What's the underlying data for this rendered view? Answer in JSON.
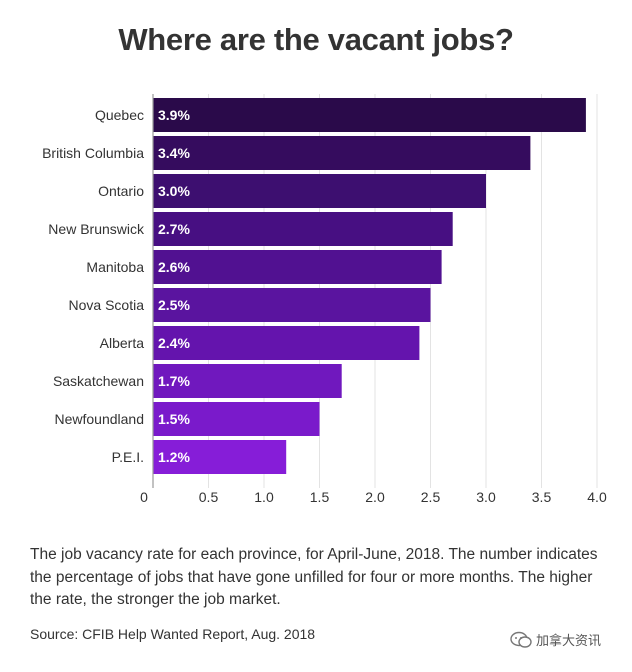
{
  "chart_data": {
    "type": "bar",
    "orientation": "horizontal",
    "title": "Where are the vacant jobs?",
    "categories": [
      "Quebec",
      "British Columbia",
      "Ontario",
      "New Brunswick",
      "Manitoba",
      "Nova Scotia",
      "Alberta",
      "Saskatchewan",
      "Newfoundland",
      "P.E.I."
    ],
    "values": [
      3.9,
      3.4,
      3.0,
      2.7,
      2.6,
      2.5,
      2.4,
      1.7,
      1.5,
      1.2
    ],
    "value_labels": [
      "3.9%",
      "3.4%",
      "3.0%",
      "2.7%",
      "2.6%",
      "2.5%",
      "2.4%",
      "1.7%",
      "1.5%",
      "1.2%"
    ],
    "xlim": [
      0,
      4.0
    ],
    "x_ticks": [
      "0",
      "0.5",
      "1.0",
      "1.5",
      "2.0",
      "2.5",
      "3.0",
      "3.5",
      "4.0"
    ],
    "x_tick_values": [
      0,
      0.5,
      1.0,
      1.5,
      2.0,
      2.5,
      3.0,
      3.5,
      4.0
    ],
    "grid": true,
    "bar_colors": [
      "#2a0a4a",
      "#350c5e",
      "#3d0f70",
      "#470f82",
      "#511191",
      "#5a149f",
      "#6414ad",
      "#7018be",
      "#7a1acb",
      "#861dd8"
    ]
  },
  "caption": "The job vacancy rate for each province, for April-June, 2018. The number indicates the percentage of jobs that have gone unfilled for four or more months. The higher the rate, the stronger the job market.",
  "source": "Source: CFIB Help Wanted Report, Aug. 2018",
  "watermark": "加拿大资讯"
}
